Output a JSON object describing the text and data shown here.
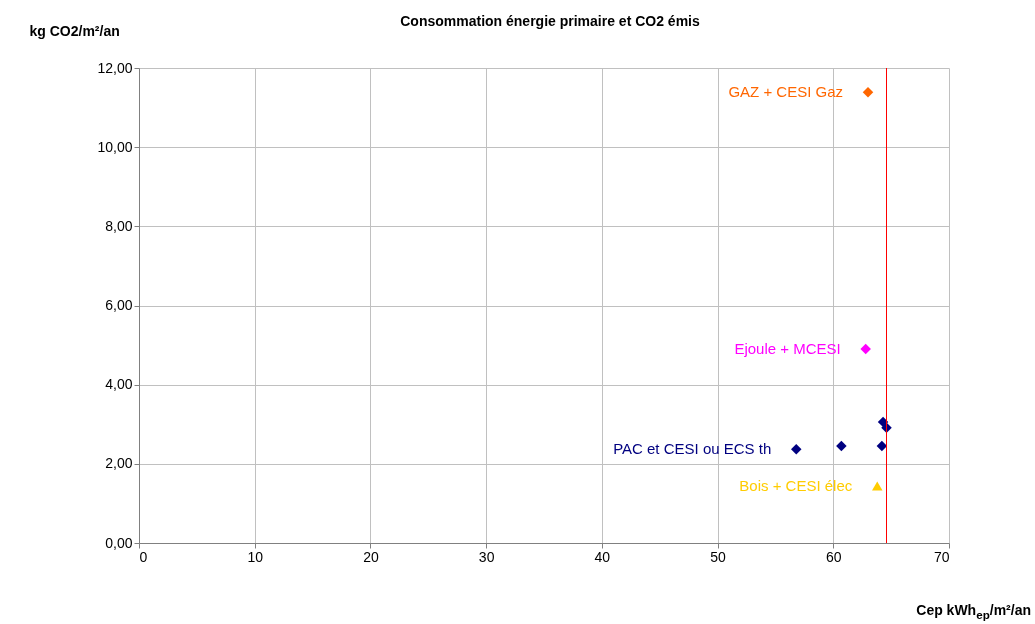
{
  "chart_data": {
    "type": "scatter",
    "title": "Consommation énergie primaire et CO2 émis",
    "xlabel": "Cep kWh$_{ep}$/m²/an",
    "ylabel": "kg CO2/m²/an",
    "series": [
      {
        "name": "GAZ + CESI Gaz",
        "color": "#ff6600",
        "marker": "diamond",
        "x": [
          63.0
        ],
        "values": [
          11.39
        ]
      },
      {
        "name": "Ejoule + MCESI",
        "color": "#ff00ff",
        "marker": "diamond",
        "x": [
          62.8
        ],
        "values": [
          4.9
        ]
      },
      {
        "name": "PAC et CESI ou ECS th",
        "color": "#000080",
        "marker": "diamond",
        "x": [
          56.8,
          60.7,
          64.2,
          64.3,
          64.6
        ],
        "values": [
          2.37,
          2.45,
          2.45,
          3.06,
          2.91
        ]
      },
      {
        "name": "Bois + CESI élec",
        "color": "#ffcc00",
        "marker": "triangle",
        "x": [
          63.8
        ],
        "values": [
          1.44
        ]
      }
    ],
    "xlim": [
      0,
      70
    ],
    "xticks": [
      0,
      10,
      20,
      30,
      40,
      50,
      60,
      70
    ],
    "ylim": [
      0,
      12
    ],
    "yticks": [
      {
        "value": 0,
        "label": "0,00"
      },
      {
        "value": 2,
        "label": "2,00"
      },
      {
        "value": 4,
        "label": "4,00"
      },
      {
        "value": 6,
        "label": "6,00"
      },
      {
        "value": 8,
        "label": "8,00"
      },
      {
        "value": 10,
        "label": "10,00"
      },
      {
        "value": 12,
        "label": "12,00"
      }
    ],
    "ref_lines": [
      {
        "axis": "x",
        "value": 64.6,
        "color": "#ff0000"
      }
    ],
    "grid": true,
    "legend": false
  }
}
